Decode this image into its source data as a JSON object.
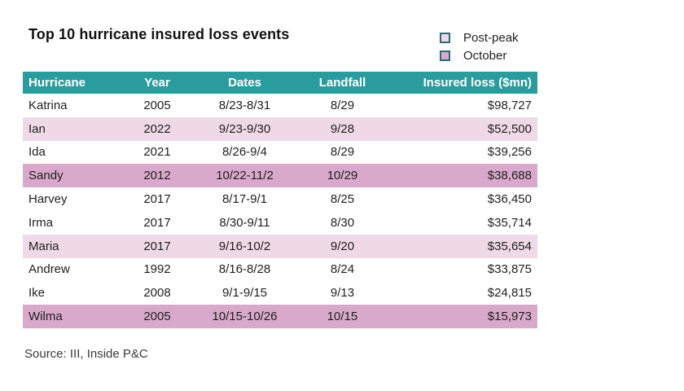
{
  "title": "Top 10 hurricane insured loss events",
  "legend": {
    "items": [
      {
        "label": "Post-peak",
        "color": "#f0d9e7"
      },
      {
        "label": "October",
        "color": "#d9a9cb"
      }
    ],
    "swatch_border_color": "#2f6b76"
  },
  "table": {
    "header_bg": "#2b9c9e",
    "header_text_color": "#ffffff",
    "columns": [
      "Hurricane",
      "Year",
      "Dates",
      "Landfall",
      "Insured loss ($mn)"
    ],
    "rows": [
      {
        "hurricane": "Katrina",
        "year": "2005",
        "dates": "8/23-8/31",
        "landfall": "8/29",
        "loss": "$98,727",
        "highlight": "none"
      },
      {
        "hurricane": "Ian",
        "year": "2022",
        "dates": "9/23-9/30",
        "landfall": "9/28",
        "loss": "$52,500",
        "highlight": "post-peak"
      },
      {
        "hurricane": "Ida",
        "year": "2021",
        "dates": "8/26-9/4",
        "landfall": "8/29",
        "loss": "$39,256",
        "highlight": "none"
      },
      {
        "hurricane": "Sandy",
        "year": "2012",
        "dates": "10/22-11/2",
        "landfall": "10/29",
        "loss": "$38,688",
        "highlight": "october"
      },
      {
        "hurricane": "Harvey",
        "year": "2017",
        "dates": "8/17-9/1",
        "landfall": "8/25",
        "loss": "$36,450",
        "highlight": "none"
      },
      {
        "hurricane": "Irma",
        "year": "2017",
        "dates": "8/30-9/11",
        "landfall": "8/30",
        "loss": "$35,714",
        "highlight": "none"
      },
      {
        "hurricane": "Maria",
        "year": "2017",
        "dates": "9/16-10/2",
        "landfall": "9/20",
        "loss": "$35,654",
        "highlight": "post-peak"
      },
      {
        "hurricane": "Andrew",
        "year": "1992",
        "dates": "8/16-8/28",
        "landfall": "8/24",
        "loss": "$33,875",
        "highlight": "none"
      },
      {
        "hurricane": "Ike",
        "year": "2008",
        "dates": "9/1-9/15",
        "landfall": "9/13",
        "loss": "$24,815",
        "highlight": "none"
      },
      {
        "hurricane": "Wilma",
        "year": "2005",
        "dates": "10/15-10/26",
        "landfall": "10/15",
        "loss": "$15,973",
        "highlight": "october"
      }
    ]
  },
  "source": "Source: III, Inside P&C",
  "chart_data": {
    "type": "table",
    "title": "Top 10 hurricane insured loss events",
    "columns": [
      "Hurricane",
      "Year",
      "Dates",
      "Landfall",
      "Insured loss ($mn)"
    ],
    "rows": [
      [
        "Katrina",
        2005,
        "8/23-8/31",
        "8/29",
        98727
      ],
      [
        "Ian",
        2022,
        "9/23-9/30",
        "9/28",
        52500
      ],
      [
        "Ida",
        2021,
        "8/26-9/4",
        "8/29",
        39256
      ],
      [
        "Sandy",
        2012,
        "10/22-11/2",
        "10/29",
        38688
      ],
      [
        "Harvey",
        2017,
        "8/17-9/1",
        "8/25",
        36450
      ],
      [
        "Irma",
        2017,
        "8/30-9/11",
        "8/30",
        35714
      ],
      [
        "Maria",
        2017,
        "9/16-10/2",
        "9/20",
        35654
      ],
      [
        "Andrew",
        1992,
        "8/16-8/28",
        "8/24",
        33875
      ],
      [
        "Ike",
        2008,
        "9/1-9/15",
        "9/13",
        24815
      ],
      [
        "Wilma",
        2005,
        "10/15-10/26",
        "10/15",
        15973
      ]
    ],
    "legend": [
      {
        "label": "Post-peak",
        "color": "#f0d9e7",
        "applies_to": [
          "Ian",
          "Maria"
        ]
      },
      {
        "label": "October",
        "color": "#d9a9cb",
        "applies_to": [
          "Sandy",
          "Wilma"
        ]
      }
    ],
    "source": "Source: III, Inside P&C"
  }
}
